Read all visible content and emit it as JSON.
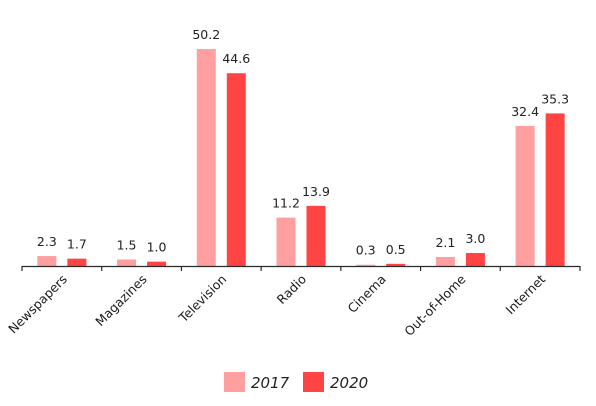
{
  "chart_data": {
    "type": "bar",
    "title": "",
    "xlabel": "",
    "ylabel": "",
    "categories": [
      "Newspapers",
      "Magazines",
      "Television",
      "Radio",
      "Cinema",
      "Out-of-Home",
      "Internet"
    ],
    "series": [
      {
        "name": "2017",
        "color": "#ff9f9f",
        "values": [
          2.3,
          1.5,
          50.2,
          11.2,
          0.3,
          2.1,
          32.4
        ],
        "labels": [
          "2.3",
          "1.5",
          "50.2",
          "11.2",
          "0.3",
          "2.1",
          "32.4"
        ]
      },
      {
        "name": "2020",
        "color": "#ff4444",
        "values": [
          1.7,
          1.0,
          44.6,
          13.9,
          0.5,
          3.0,
          35.3
        ],
        "labels": [
          "1.7",
          "1.0",
          "44.6",
          "13.9",
          "0.5",
          "3.0",
          "35.3"
        ]
      }
    ],
    "ylim": [
      0,
      50.2
    ],
    "grid": false,
    "y_axis_visible": false,
    "legend": {
      "placement": "bottom-center"
    },
    "axis_color": "#2a2a2a"
  }
}
